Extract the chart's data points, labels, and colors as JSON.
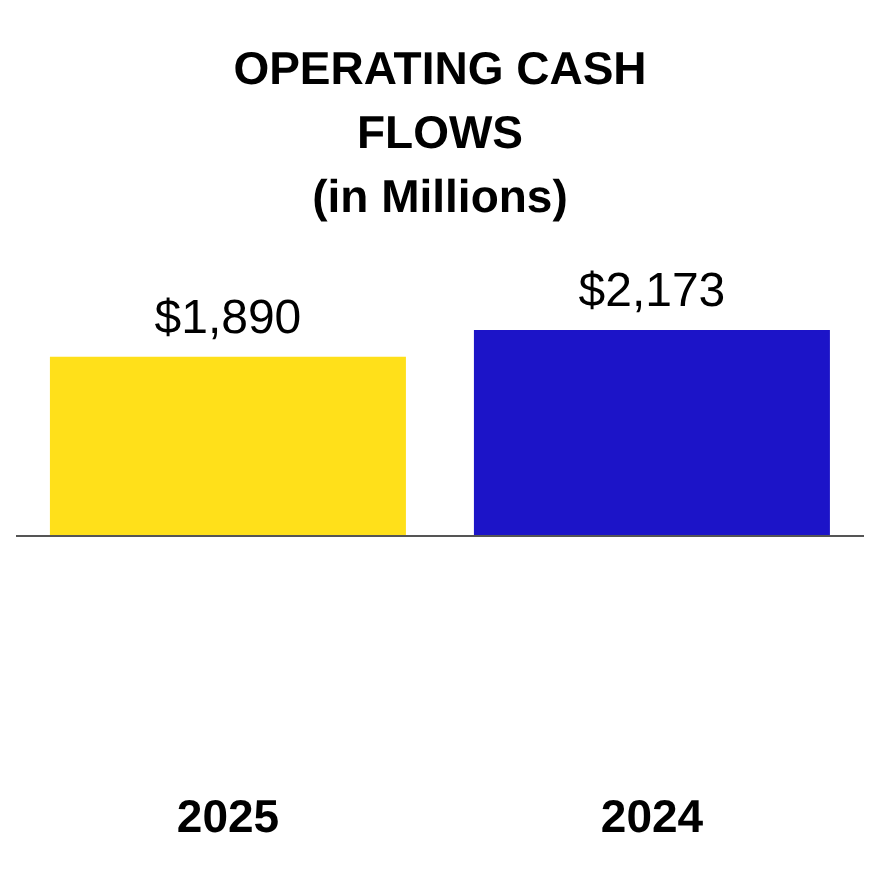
{
  "chart_data": {
    "type": "bar",
    "title": "OPERATING CASH FLOWS",
    "subtitle": "(in Millions)",
    "categories": [
      "2025",
      "2024"
    ],
    "values": [
      1890,
      2173
    ],
    "colors": [
      "#ffe01a",
      "#1c14c8"
    ],
    "value_labels": [
      "$1,890",
      "$2,173"
    ],
    "grid": false,
    "legend": false
  }
}
